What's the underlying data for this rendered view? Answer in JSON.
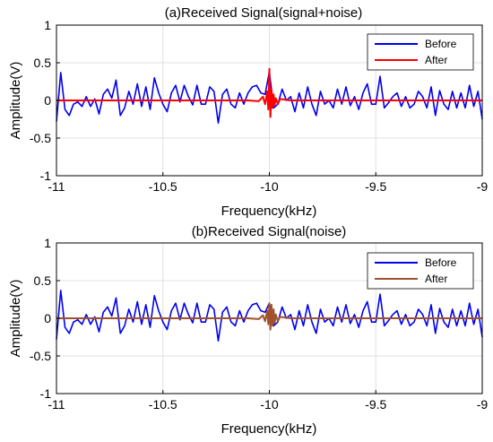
{
  "chart_data": [
    {
      "type": "line",
      "title": "(a)Received Signal(signal+noise)",
      "xlabel": "Frequency(kHz)",
      "ylabel": "Amplitude(V)",
      "xlim": [
        -11,
        -9
      ],
      "ylim": [
        -1,
        1
      ],
      "xticks": [
        -11,
        -10.5,
        -10,
        -9.5,
        -9
      ],
      "xtick_labels": [
        "-11",
        "-10.5",
        "-10",
        "-9.5",
        "-9"
      ],
      "yticks": [
        -1,
        -0.5,
        0,
        0.5,
        1
      ],
      "ytick_labels": [
        "-1",
        "-0.5",
        "0",
        "0.5",
        "1"
      ],
      "grid": true,
      "legend_position": "top-right",
      "series": [
        {
          "name": "Before",
          "color": "#0000ee",
          "x": [
            -11.0,
            -10.98,
            -10.96,
            -10.94,
            -10.92,
            -10.9,
            -10.88,
            -10.86,
            -10.84,
            -10.82,
            -10.8,
            -10.78,
            -10.76,
            -10.74,
            -10.72,
            -10.7,
            -10.68,
            -10.66,
            -10.64,
            -10.62,
            -10.6,
            -10.58,
            -10.56,
            -10.54,
            -10.52,
            -10.5,
            -10.48,
            -10.46,
            -10.44,
            -10.42,
            -10.4,
            -10.38,
            -10.36,
            -10.34,
            -10.32,
            -10.3,
            -10.28,
            -10.26,
            -10.24,
            -10.22,
            -10.2,
            -10.18,
            -10.16,
            -10.14,
            -10.12,
            -10.1,
            -10.08,
            -10.06,
            -10.04,
            -10.02,
            -10.0,
            -9.98,
            -9.96,
            -9.94,
            -9.92,
            -9.9,
            -9.88,
            -9.86,
            -9.84,
            -9.82,
            -9.8,
            -9.78,
            -9.76,
            -9.74,
            -9.72,
            -9.7,
            -9.68,
            -9.66,
            -9.64,
            -9.62,
            -9.6,
            -9.58,
            -9.56,
            -9.54,
            -9.52,
            -9.5,
            -9.48,
            -9.46,
            -9.44,
            -9.42,
            -9.4,
            -9.38,
            -9.36,
            -9.34,
            -9.32,
            -9.3,
            -9.28,
            -9.26,
            -9.24,
            -9.22,
            -9.2,
            -9.18,
            -9.16,
            -9.14,
            -9.12,
            -9.1,
            -9.08,
            -9.06,
            -9.04,
            -9.02,
            -9.0
          ],
          "y": [
            -0.28,
            0.37,
            -0.12,
            -0.2,
            -0.05,
            -0.02,
            -0.08,
            0.05,
            -0.08,
            0.02,
            -0.18,
            0.08,
            0.15,
            0.03,
            0.27,
            -0.2,
            -0.1,
            0.12,
            -0.05,
            0.22,
            -0.08,
            0.18,
            -0.12,
            0.3,
            0.1,
            -0.05,
            -0.15,
            0.1,
            0.2,
            -0.02,
            0.2,
            0.05,
            -0.06,
            0.2,
            -0.05,
            -0.05,
            0.18,
            0.12,
            -0.3,
            0.08,
            0.15,
            -0.05,
            -0.1,
            0.1,
            -0.05,
            0.1,
            0.18,
            0.2,
            0.1,
            0.08,
            0.38,
            -0.1,
            -0.05,
            0.15,
            0.0,
            0.05,
            -0.15,
            0.1,
            -0.1,
            0.18,
            -0.05,
            -0.2,
            0.12,
            -0.05,
            0.0,
            -0.1,
            0.15,
            -0.05,
            0.18,
            -0.07,
            0.05,
            -0.12,
            0.1,
            0.22,
            -0.05,
            -0.05,
            0.32,
            -0.1,
            -0.03,
            0.05,
            0.1,
            -0.08,
            0.05,
            -0.1,
            -0.05,
            0.12,
            0.05,
            -0.1,
            0.18,
            -0.2,
            0.13,
            -0.05,
            -0.12,
            0.12,
            -0.1,
            0.1,
            -0.1,
            0.2,
            -0.08,
            0.12,
            -0.25
          ]
        },
        {
          "name": "After",
          "color": "#ff0000",
          "x": [
            -11.0,
            -10.1,
            -10.05,
            -10.03,
            -10.02,
            -10.01,
            -10.005,
            -10.0,
            -9.995,
            -9.99,
            -9.985,
            -9.98,
            -9.975,
            -9.97,
            -9.96,
            -9.95,
            -9.9,
            -9.0
          ],
          "y": [
            0.0,
            0.0,
            -0.01,
            0.05,
            -0.05,
            0.12,
            -0.12,
            0.42,
            -0.22,
            0.15,
            -0.1,
            0.08,
            -0.06,
            0.03,
            -0.05,
            0.02,
            0.0,
            0.0
          ]
        }
      ]
    },
    {
      "type": "line",
      "title": "(b)Received Signal(noise)",
      "xlabel": "Frequency(kHz)",
      "ylabel": "Amplitude(V)",
      "xlim": [
        -11,
        -9
      ],
      "ylim": [
        -1,
        1
      ],
      "xticks": [
        -11,
        -10.5,
        -10,
        -9.5,
        -9
      ],
      "xtick_labels": [
        "-11",
        "-10.5",
        "-10",
        "-9.5",
        "-9"
      ],
      "yticks": [
        -1,
        -0.5,
        0,
        0.5,
        1
      ],
      "ytick_labels": [
        "-1",
        "-0.5",
        "0",
        "0.5",
        "1"
      ],
      "grid": true,
      "legend_position": "top-right",
      "series": [
        {
          "name": "Before",
          "color": "#0000ee",
          "x": [
            -11.0,
            -10.98,
            -10.96,
            -10.94,
            -10.92,
            -10.9,
            -10.88,
            -10.86,
            -10.84,
            -10.82,
            -10.8,
            -10.78,
            -10.76,
            -10.74,
            -10.72,
            -10.7,
            -10.68,
            -10.66,
            -10.64,
            -10.62,
            -10.6,
            -10.58,
            -10.56,
            -10.54,
            -10.52,
            -10.5,
            -10.48,
            -10.46,
            -10.44,
            -10.42,
            -10.4,
            -10.38,
            -10.36,
            -10.34,
            -10.32,
            -10.3,
            -10.28,
            -10.26,
            -10.24,
            -10.22,
            -10.2,
            -10.18,
            -10.16,
            -10.14,
            -10.12,
            -10.1,
            -10.08,
            -10.06,
            -10.04,
            -10.02,
            -10.0,
            -9.98,
            -9.96,
            -9.94,
            -9.92,
            -9.9,
            -9.88,
            -9.86,
            -9.84,
            -9.82,
            -9.8,
            -9.78,
            -9.76,
            -9.74,
            -9.72,
            -9.7,
            -9.68,
            -9.66,
            -9.64,
            -9.62,
            -9.6,
            -9.58,
            -9.56,
            -9.54,
            -9.52,
            -9.5,
            -9.48,
            -9.46,
            -9.44,
            -9.42,
            -9.4,
            -9.38,
            -9.36,
            -9.34,
            -9.32,
            -9.3,
            -9.28,
            -9.26,
            -9.24,
            -9.22,
            -9.2,
            -9.18,
            -9.16,
            -9.14,
            -9.12,
            -9.1,
            -9.08,
            -9.06,
            -9.04,
            -9.02,
            -9.0
          ],
          "y": [
            -0.28,
            0.37,
            -0.12,
            -0.2,
            -0.05,
            -0.02,
            -0.08,
            0.05,
            -0.08,
            0.02,
            -0.18,
            0.08,
            0.15,
            0.03,
            0.27,
            -0.2,
            -0.1,
            0.12,
            -0.05,
            0.22,
            -0.08,
            0.18,
            -0.12,
            0.3,
            0.1,
            -0.05,
            -0.15,
            0.1,
            0.2,
            -0.02,
            0.2,
            0.05,
            -0.06,
            0.2,
            -0.05,
            -0.05,
            0.18,
            0.12,
            -0.3,
            0.08,
            0.15,
            -0.05,
            -0.1,
            0.1,
            -0.05,
            0.1,
            0.18,
            0.2,
            0.1,
            0.08,
            0.2,
            -0.1,
            -0.05,
            0.15,
            0.0,
            0.05,
            -0.15,
            0.1,
            -0.1,
            0.18,
            -0.05,
            -0.2,
            0.12,
            -0.05,
            0.0,
            -0.1,
            0.15,
            -0.05,
            0.18,
            -0.07,
            0.05,
            -0.12,
            0.1,
            0.22,
            -0.05,
            -0.05,
            0.32,
            -0.1,
            -0.03,
            0.05,
            0.1,
            -0.08,
            0.05,
            -0.1,
            -0.05,
            0.12,
            0.05,
            -0.1,
            0.18,
            -0.2,
            0.13,
            -0.05,
            -0.12,
            0.12,
            -0.1,
            0.1,
            -0.1,
            0.2,
            -0.08,
            0.12,
            -0.25
          ]
        },
        {
          "name": "After",
          "color": "#a0522d",
          "x": [
            -11.0,
            -10.1,
            -10.05,
            -10.03,
            -10.02,
            -10.01,
            -10.005,
            -10.0,
            -9.995,
            -9.99,
            -9.985,
            -9.98,
            -9.975,
            -9.97,
            -9.96,
            -9.95,
            -9.9,
            -9.0
          ],
          "y": [
            0.0,
            0.0,
            -0.01,
            0.04,
            -0.04,
            0.1,
            -0.08,
            0.2,
            -0.15,
            0.18,
            -0.1,
            0.12,
            -0.06,
            0.05,
            -0.04,
            0.02,
            0.0,
            0.0
          ]
        }
      ]
    }
  ]
}
